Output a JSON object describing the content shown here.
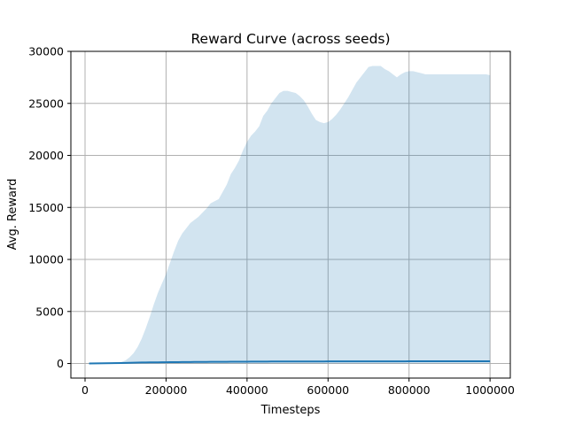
{
  "chart_data": {
    "type": "area",
    "title": "Reward Curve (across seeds)",
    "xlabel": "Timesteps",
    "ylabel": "Avg. Reward",
    "xlim": [
      -35000,
      1050000
    ],
    "ylim": [
      -1400,
      30000
    ],
    "x_ticks": [
      0,
      200000,
      400000,
      600000,
      800000,
      1000000
    ],
    "y_ticks": [
      0,
      5000,
      10000,
      15000,
      20000,
      25000,
      30000
    ],
    "x_tick_labels": [
      "0",
      "200000",
      "400000",
      "600000",
      "800000",
      "1000000"
    ],
    "y_tick_labels": [
      "0",
      "5000",
      "10000",
      "15000",
      "20000",
      "25000",
      "30000"
    ],
    "grid": true,
    "colors": {
      "line": "#1f77b4",
      "band": "#1f77b4",
      "grid": "#b0b0b0"
    },
    "x": [
      10000,
      50000,
      90000,
      100000,
      110000,
      120000,
      130000,
      140000,
      150000,
      160000,
      170000,
      180000,
      190000,
      200000,
      210000,
      220000,
      230000,
      240000,
      250000,
      260000,
      270000,
      280000,
      290000,
      300000,
      310000,
      320000,
      330000,
      340000,
      350000,
      360000,
      370000,
      380000,
      390000,
      400000,
      410000,
      420000,
      430000,
      440000,
      450000,
      460000,
      470000,
      480000,
      490000,
      500000,
      510000,
      520000,
      530000,
      540000,
      550000,
      560000,
      570000,
      580000,
      590000,
      600000,
      610000,
      620000,
      630000,
      640000,
      650000,
      660000,
      670000,
      680000,
      690000,
      700000,
      710000,
      720000,
      730000,
      740000,
      750000,
      760000,
      770000,
      780000,
      790000,
      800000,
      810000,
      820000,
      830000,
      840000,
      850000,
      860000,
      870000,
      880000,
      890000,
      900000,
      910000,
      920000,
      930000,
      940000,
      950000,
      960000,
      970000,
      980000,
      990000,
      1000000
    ],
    "series": [
      {
        "values": [
          0,
          20,
          50,
          60,
          70,
          80,
          90,
          95,
          100,
          105,
          110,
          115,
          120,
          125,
          130,
          133,
          136,
          140,
          143,
          146,
          149,
          152,
          155,
          158,
          160,
          162,
          164,
          166,
          168,
          170,
          172,
          174,
          176,
          178,
          180,
          182,
          184,
          186,
          188,
          190,
          191,
          192,
          193,
          194,
          195,
          196,
          197,
          198,
          199,
          200,
          200,
          201,
          201,
          202,
          202,
          203,
          203,
          204,
          204,
          205,
          205,
          206,
          206,
          207,
          207,
          208,
          208,
          209,
          209,
          210,
          210,
          211,
          211,
          212,
          212,
          213,
          213,
          214,
          214,
          215,
          215,
          216,
          216,
          217,
          217,
          218,
          218,
          219,
          219,
          220,
          220,
          221,
          221,
          222
        ],
        "upper": [
          0,
          50,
          150,
          300,
          600,
          1000,
          1600,
          2400,
          3400,
          4500,
          5700,
          6800,
          7700,
          8600,
          9700,
          10800,
          11800,
          12500,
          13000,
          13500,
          13800,
          14100,
          14500,
          14900,
          15400,
          15600,
          15800,
          16500,
          17200,
          18200,
          18800,
          19500,
          20500,
          21300,
          21900,
          22300,
          22800,
          23800,
          24300,
          25000,
          25500,
          26000,
          26200,
          26200,
          26100,
          26000,
          25700,
          25300,
          24700,
          24000,
          23400,
          23200,
          23100,
          23200,
          23500,
          23900,
          24400,
          25000,
          25600,
          26300,
          27000,
          27500,
          28000,
          28500,
          28600,
          28600,
          28600,
          28300,
          28100,
          27800,
          27500,
          27800,
          28000,
          28100,
          28100,
          28000,
          27900,
          27800,
          27800,
          27800,
          27800,
          27800,
          27800,
          27800,
          27800,
          27800,
          27800,
          27800,
          27800,
          27800,
          27800,
          27800,
          27800,
          27700
        ],
        "lower": [
          0,
          0,
          0,
          0,
          0,
          0,
          0,
          0,
          0,
          0,
          0,
          0,
          0,
          0,
          0,
          0,
          0,
          0,
          0,
          0,
          0,
          0,
          0,
          0,
          0,
          0,
          0,
          0,
          0,
          0,
          0,
          0,
          0,
          0,
          0,
          0,
          0,
          0,
          0,
          0,
          0,
          0,
          0,
          0,
          0,
          0,
          0,
          0,
          0,
          0,
          0,
          0,
          0,
          0,
          0,
          0,
          0,
          0,
          0,
          0,
          0,
          0,
          0,
          0,
          0,
          0,
          0,
          0,
          0,
          0,
          0,
          0,
          0,
          0,
          0,
          0,
          0,
          0,
          0,
          0,
          0,
          0,
          0,
          0,
          0,
          0,
          0,
          0,
          0,
          0,
          0,
          0,
          0,
          0
        ]
      }
    ]
  }
}
